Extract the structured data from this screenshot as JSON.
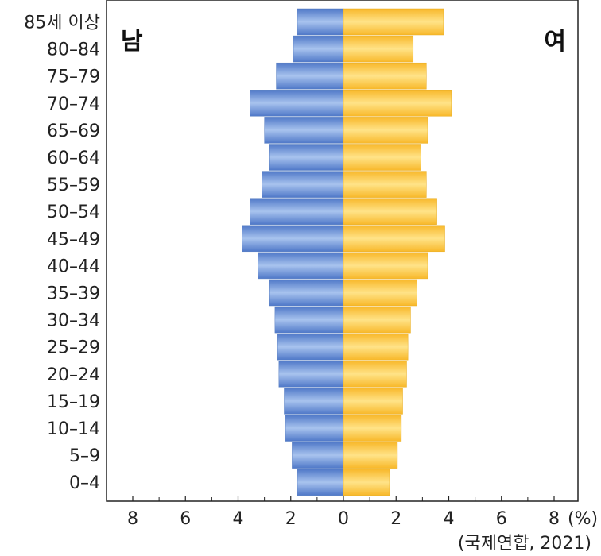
{
  "chart_data": {
    "type": "bar",
    "subtype": "population-pyramid",
    "title": "",
    "categories": [
      "0–4",
      "5–9",
      "10–14",
      "15–19",
      "20–24",
      "25–29",
      "30–34",
      "35–39",
      "40–44",
      "45–49",
      "50–54",
      "55–59",
      "60–64",
      "65–69",
      "70–74",
      "75–79",
      "80–84",
      "85세 이상"
    ],
    "series": [
      {
        "name": "남",
        "color": "#6f97d8",
        "values": [
          1.75,
          1.95,
          2.2,
          2.25,
          2.45,
          2.5,
          2.6,
          2.8,
          3.25,
          3.85,
          3.55,
          3.1,
          2.8,
          3.0,
          3.55,
          2.55,
          1.9,
          1.75
        ]
      },
      {
        "name": "여",
        "color": "#fcc83a",
        "values": [
          1.75,
          2.05,
          2.2,
          2.25,
          2.4,
          2.45,
          2.55,
          2.8,
          3.2,
          3.85,
          3.55,
          3.15,
          2.95,
          3.2,
          4.1,
          3.15,
          2.65,
          3.8
        ]
      }
    ],
    "x_ticks": [
      "8",
      "6",
      "4",
      "2",
      "0",
      "2",
      "4",
      "6",
      "8"
    ],
    "xlim": [
      -8,
      8
    ],
    "unit": "(%)",
    "source": "(국제연합, 2021)",
    "grid": false
  }
}
